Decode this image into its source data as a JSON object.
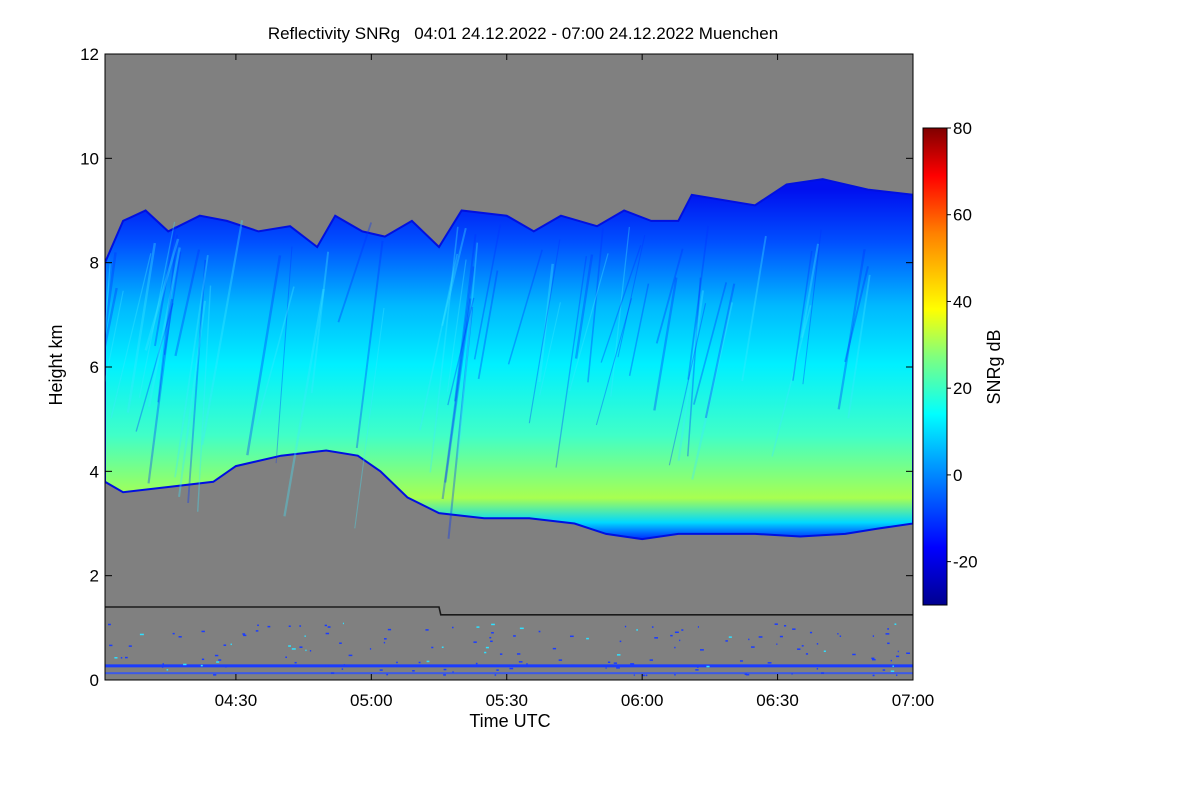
{
  "chart_data": {
    "type": "heatmap",
    "title": "Reflectivity SNRg   04:01 24.12.2022 - 07:00 24.12.2022 Muenchen",
    "xlabel": "Time UTC",
    "ylabel": "Height km",
    "colorbar_label": "SNRg dB",
    "x_range": [
      "04:01",
      "07:00"
    ],
    "xlim_minutes": [
      241,
      420
    ],
    "ylim": [
      0,
      12
    ],
    "x_ticks": [
      {
        "label": "04:30",
        "minutes": 270
      },
      {
        "label": "05:00",
        "minutes": 300
      },
      {
        "label": "05:30",
        "minutes": 330
      },
      {
        "label": "06:00",
        "minutes": 360
      },
      {
        "label": "06:30",
        "minutes": 390
      },
      {
        "label": "07:00",
        "minutes": 420
      }
    ],
    "y_ticks": [
      0,
      2,
      4,
      6,
      8,
      10,
      12
    ],
    "colorbar_ticks": [
      -20,
      0,
      20,
      40,
      60,
      80
    ],
    "colorbar_range": [
      -30,
      80
    ],
    "background_color": "#808080",
    "cloud_top_km": [
      [
        241,
        8.0
      ],
      [
        245,
        8.8
      ],
      [
        250,
        9.0
      ],
      [
        255,
        8.6
      ],
      [
        262,
        8.9
      ],
      [
        268,
        8.8
      ],
      [
        275,
        8.6
      ],
      [
        282,
        8.7
      ],
      [
        288,
        8.3
      ],
      [
        292,
        8.9
      ],
      [
        298,
        8.6
      ],
      [
        303,
        8.5
      ],
      [
        309,
        8.8
      ],
      [
        315,
        8.3
      ],
      [
        320,
        9.0
      ],
      [
        330,
        8.9
      ],
      [
        336,
        8.6
      ],
      [
        342,
        8.9
      ],
      [
        350,
        8.7
      ],
      [
        356,
        9.0
      ],
      [
        362,
        8.8
      ],
      [
        368,
        8.8
      ],
      [
        371,
        9.3
      ],
      [
        378,
        9.2
      ],
      [
        385,
        9.1
      ],
      [
        392,
        9.5
      ],
      [
        400,
        9.6
      ],
      [
        410,
        9.4
      ],
      [
        420,
        9.3
      ]
    ],
    "cloud_base_km": [
      [
        241,
        3.8
      ],
      [
        245,
        3.6
      ],
      [
        255,
        3.7
      ],
      [
        265,
        3.8
      ],
      [
        270,
        4.1
      ],
      [
        280,
        4.3
      ],
      [
        290,
        4.4
      ],
      [
        297,
        4.3
      ],
      [
        302,
        4.0
      ],
      [
        308,
        3.5
      ],
      [
        315,
        3.2
      ],
      [
        325,
        3.1
      ],
      [
        335,
        3.1
      ],
      [
        345,
        3.0
      ],
      [
        352,
        2.8
      ],
      [
        360,
        2.7
      ],
      [
        368,
        2.8
      ],
      [
        375,
        2.8
      ],
      [
        385,
        2.8
      ],
      [
        395,
        2.75
      ],
      [
        405,
        2.8
      ],
      [
        412,
        2.9
      ],
      [
        420,
        3.0
      ]
    ],
    "boundary_line_km": [
      [
        241,
        1.4
      ],
      [
        315,
        1.4
      ],
      [
        315.4,
        1.25
      ],
      [
        420,
        1.25
      ]
    ]
  }
}
